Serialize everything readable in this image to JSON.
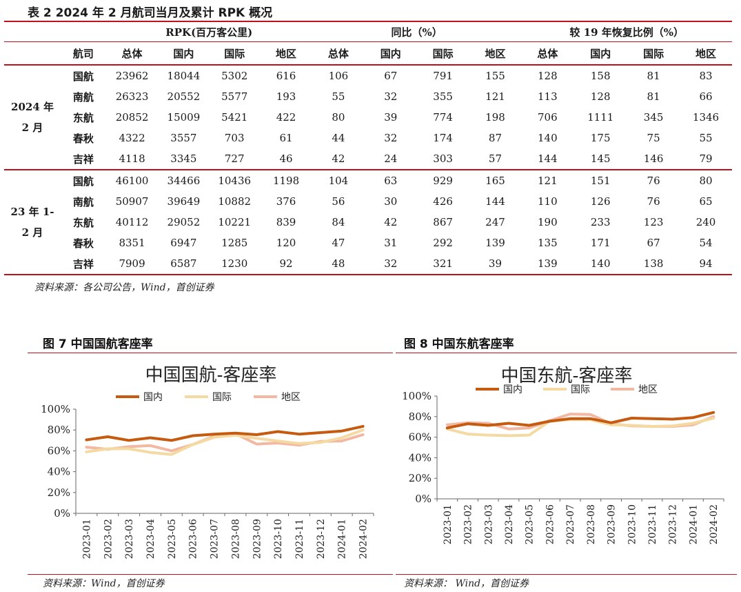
{
  "table": {
    "title": "表 2 2024 年 2 月航司当月及累计 RPK 概况",
    "group_headers": [
      "RPK(百万客公里)",
      "同比（%）",
      "较 19 年恢复比例（%）"
    ],
    "col_headers": [
      "航司",
      "总体",
      "国内",
      "国际",
      "地区",
      "总体",
      "国内",
      "国际",
      "地区",
      "总体",
      "国内",
      "国际",
      "地区"
    ],
    "sections": [
      {
        "period_line1": "2024 年",
        "period_line2": "2 月",
        "rows": [
          [
            "国航",
            "23962",
            "18044",
            "5302",
            "616",
            "106",
            "67",
            "791",
            "155",
            "128",
            "158",
            "81",
            "83"
          ],
          [
            "南航",
            "26323",
            "20552",
            "5577",
            "193",
            "55",
            "32",
            "355",
            "121",
            "113",
            "128",
            "81",
            "66"
          ],
          [
            "东航",
            "20852",
            "15009",
            "5421",
            "422",
            "80",
            "39",
            "774",
            "198",
            "706",
            "1111",
            "345",
            "1346"
          ],
          [
            "春秋",
            "4322",
            "3557",
            "703",
            "61",
            "44",
            "32",
            "174",
            "87",
            "140",
            "175",
            "75",
            "55"
          ],
          [
            "吉祥",
            "4118",
            "3345",
            "727",
            "46",
            "42",
            "24",
            "303",
            "57",
            "144",
            "145",
            "146",
            "79"
          ]
        ]
      },
      {
        "period_line1": "23 年 1-",
        "period_line2": "2 月",
        "rows": [
          [
            "国航",
            "46100",
            "34466",
            "10436",
            "1198",
            "104",
            "63",
            "929",
            "165",
            "121",
            "151",
            "76",
            "80"
          ],
          [
            "南航",
            "50907",
            "39649",
            "10882",
            "376",
            "56",
            "30",
            "426",
            "144",
            "110",
            "126",
            "76",
            "65"
          ],
          [
            "东航",
            "40112",
            "29052",
            "10221",
            "839",
            "84",
            "42",
            "867",
            "247",
            "190",
            "233",
            "123",
            "240"
          ],
          [
            "春秋",
            "8351",
            "6947",
            "1285",
            "120",
            "47",
            "31",
            "292",
            "139",
            "135",
            "171",
            "67",
            "54"
          ],
          [
            "吉祥",
            "7909",
            "6587",
            "1230",
            "92",
            "48",
            "32",
            "321",
            "39",
            "139",
            "140",
            "138",
            "94"
          ]
        ]
      }
    ],
    "source": "资料来源：各公司公告，Wind，首创证券"
  },
  "figures": {
    "fig7_title": "图 7 中国国航客座率",
    "fig7_source": "资料来源：Wind，首创证券",
    "fig8_title": "图 8 中国东航客座率",
    "fig8_source": "资料来源： Wind，首创证券"
  },
  "chart_data": [
    {
      "type": "line",
      "title": "中国国航-客座率",
      "xlabel": "",
      "ylabel": "",
      "x": [
        "2023-01",
        "2023-02",
        "2023-03",
        "2023-04",
        "2023-05",
        "2023-06",
        "2023-07",
        "2023-08",
        "2023-09",
        "2023-10",
        "2023-11",
        "2023-12",
        "2024-01",
        "2024-02"
      ],
      "ylim": [
        0,
        100
      ],
      "yticks": [
        "0%",
        "20%",
        "40%",
        "60%",
        "80%",
        "100%"
      ],
      "legend_position": "top-center",
      "series": [
        {
          "name": "国内",
          "color": "#c55a11",
          "values": [
            70.5,
            73.5,
            70.0,
            72.5,
            70.0,
            74.5,
            76.0,
            77.0,
            75.5,
            78.5,
            76.0,
            77.5,
            79.0,
            83.5
          ]
        },
        {
          "name": "国际",
          "color": "#f5d9a3",
          "values": [
            59.0,
            62.0,
            62.0,
            58.5,
            56.5,
            66.0,
            73.0,
            75.0,
            72.0,
            69.5,
            67.0,
            68.0,
            72.5,
            80.0
          ]
        },
        {
          "name": "地区",
          "color": "#f2b8a2",
          "values": [
            63.5,
            61.5,
            64.0,
            65.0,
            60.0,
            66.0,
            74.0,
            76.5,
            66.5,
            67.5,
            65.5,
            69.0,
            69.5,
            75.5
          ]
        }
      ]
    },
    {
      "type": "line",
      "title": "中国东航-客座率",
      "xlabel": "",
      "ylabel": "",
      "x": [
        "2023-01",
        "2023-02",
        "2023-03",
        "2023-04",
        "2023-05",
        "2023-06",
        "2023-07",
        "2023-08",
        "2023-09",
        "2023-10",
        "2023-11",
        "2023-12",
        "2024-01",
        "2024-02"
      ],
      "ylim": [
        0,
        100
      ],
      "yticks": [
        "0%",
        "20%",
        "40%",
        "60%",
        "80%",
        "100%"
      ],
      "legend_position": "top-center",
      "series": [
        {
          "name": "国内",
          "color": "#c55a11",
          "values": [
            69.0,
            73.0,
            71.5,
            73.5,
            71.5,
            75.5,
            78.0,
            78.0,
            74.0,
            78.5,
            78.0,
            77.5,
            79.0,
            84.0
          ]
        },
        {
          "name": "国际",
          "color": "#f5d9a3",
          "values": [
            68.0,
            63.0,
            62.0,
            61.5,
            62.0,
            75.5,
            77.0,
            77.0,
            72.0,
            71.5,
            70.5,
            71.0,
            73.5,
            78.5
          ]
        },
        {
          "name": "地区",
          "color": "#f2b8a2",
          "values": [
            72.0,
            74.0,
            73.5,
            68.0,
            69.0,
            76.0,
            82.5,
            82.0,
            73.0,
            71.0,
            70.5,
            70.5,
            72.0,
            80.0
          ]
        }
      ]
    }
  ]
}
